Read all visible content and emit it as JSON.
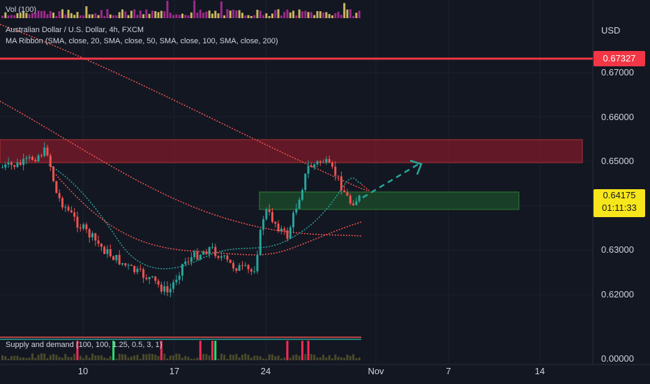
{
  "volume_indicator": {
    "label": "Vol (100)"
  },
  "header": {
    "symbol": "Australian Dollar / U.S. Dollar, 4h, FXCM",
    "ma_ribbon": "MA Ribbon (SMA, close, 20, SMA, close, 50, SMA, close, 100, SMA, close, 200)"
  },
  "supply_demand": {
    "label": "Supply and demand (100, 100, 1.25, 0.5, 3, 1)"
  },
  "price_axis": {
    "currency": "USD",
    "ticks": [
      "0.67000",
      "0.66000",
      "0.65000",
      "0.63000",
      "0.62000"
    ],
    "zero_tick": "0.00000"
  },
  "date_axis": {
    "ticks": [
      "10",
      "17",
      "24",
      "Nov",
      "7",
      "14"
    ]
  },
  "resistance_line": {
    "price_label": "0.67327",
    "price": 0.67327,
    "color": "#f23645"
  },
  "current_price": {
    "price_label": "0.64175",
    "countdown": "01:11:33",
    "color": "#f7e61b"
  },
  "colors": {
    "up": "#26a69a",
    "down": "#ef5350",
    "supply_zone": "#7d1a2a",
    "demand_zone": "#1b4a2a"
  },
  "chart_data": {
    "type": "candlestick",
    "series": [],
    "supply_zone": [
      0.645,
      0.6502
    ],
    "demand_zone": [
      0.6392,
      0.6432
    ],
    "projection": [
      0.6415,
      0.6497
    ]
  }
}
